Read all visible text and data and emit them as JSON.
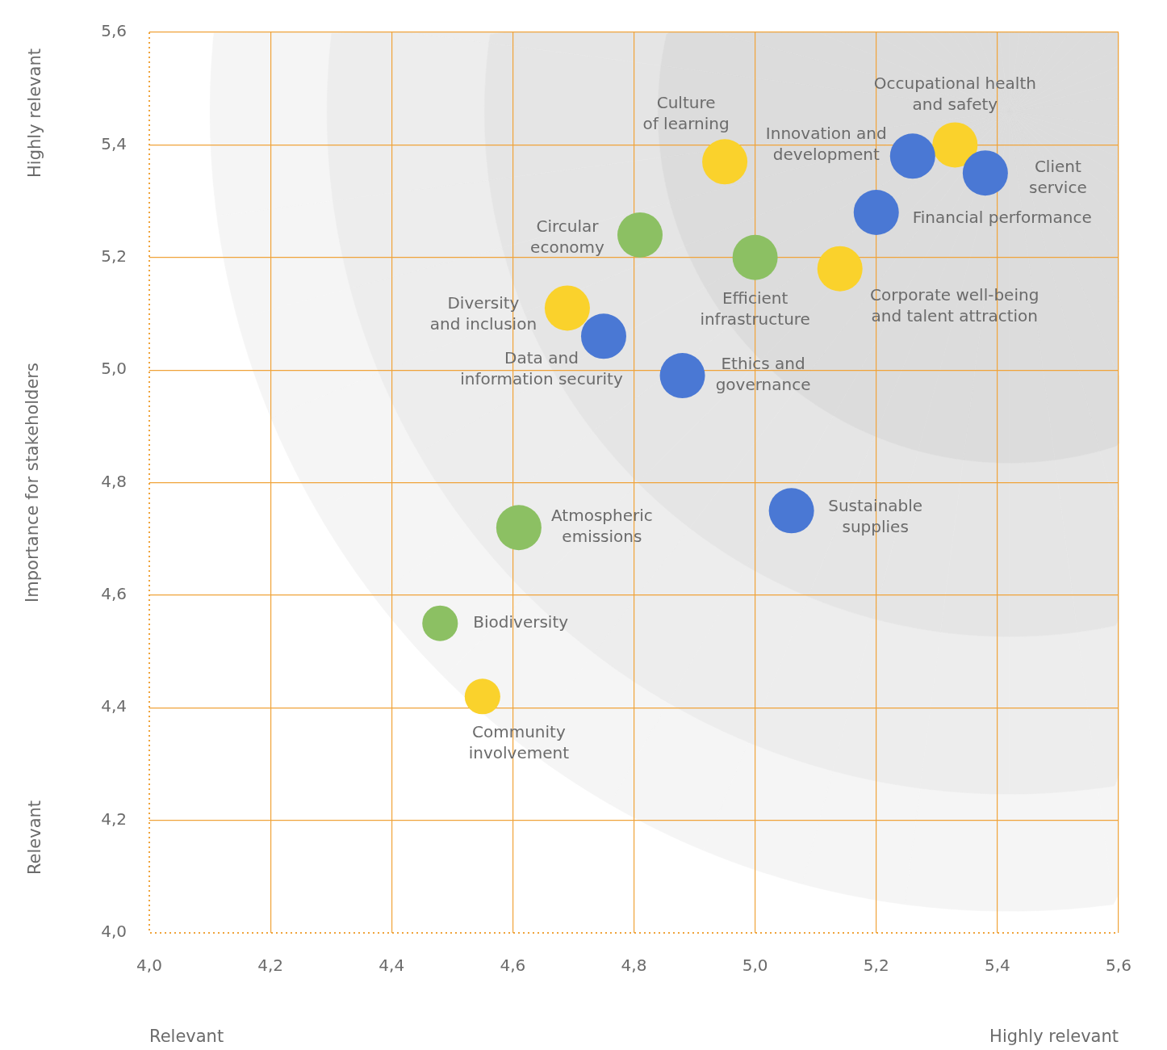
{
  "chart_data": {
    "type": "bubble",
    "ylabel": "Importance for stakeholders",
    "xlim": [
      4,
      5.6
    ],
    "xticks": [
      {
        "value": 4,
        "label": "4,0"
      },
      {
        "value": 4.2,
        "label": "4,2"
      },
      {
        "value": 4.4,
        "label": "4,4"
      },
      {
        "value": 4.6,
        "label": "4,6"
      },
      {
        "value": 4.8,
        "label": "4,8"
      },
      {
        "value": 5,
        "label": "5,0"
      },
      {
        "value": 5.2,
        "label": "5,2"
      },
      {
        "value": 5.4,
        "label": "5,4"
      },
      {
        "value": 5.6,
        "label": "5,6"
      }
    ],
    "ylim": [
      4,
      5.6
    ],
    "yticks": [
      {
        "value": 4,
        "label": "4,0"
      },
      {
        "value": 4.2,
        "label": "4,2"
      },
      {
        "value": 4.4,
        "label": "4,4"
      },
      {
        "value": 4.6,
        "label": "4,6"
      },
      {
        "value": 4.8,
        "label": "4,8"
      },
      {
        "value": 5,
        "label": "5,0"
      },
      {
        "value": 5.2,
        "label": "5,2"
      },
      {
        "value": 5.4,
        "label": "5,4"
      },
      {
        "value": 5.6,
        "label": "5,6"
      }
    ],
    "grid": true,
    "legend": false,
    "series": [
      {
        "color": "#4a78d4",
        "x": [
          5.26,
          5.38,
          5.2,
          4.75,
          4.88,
          5.06
        ],
        "values": [
          5.38,
          5.35,
          5.28,
          5.06,
          4.99,
          4.75
        ],
        "sizes": [
          1,
          1,
          1,
          1,
          1,
          1
        ]
      },
      {
        "color": "#8cc063",
        "x": [
          4.81,
          5.0,
          4.61,
          4.48
        ],
        "values": [
          5.24,
          5.2,
          4.72,
          4.55
        ],
        "sizes": [
          1,
          1,
          1,
          0.62
        ]
      },
      {
        "color": "#fad22c",
        "x": [
          4.95,
          5.33,
          5.14,
          4.69,
          4.55
        ],
        "values": [
          5.37,
          5.4,
          5.18,
          5.11,
          4.42
        ],
        "sizes": [
          1,
          1,
          1,
          1,
          0.62
        ]
      }
    ],
    "annotations": [
      "Highly relevant",
      "Relevant",
      "Relevant",
      "Highly relevant",
      {
        "text": "Culture of learning",
        "x": 4.95,
        "y": 5.37
      },
      {
        "text": "Occupational health and safety",
        "x": 5.33,
        "y": 5.4
      },
      {
        "text": "Innovation and development",
        "x": 5.26,
        "y": 5.38
      },
      {
        "text": "Client service",
        "x": 5.38,
        "y": 5.35
      },
      {
        "text": "Financial performance",
        "x": 5.2,
        "y": 5.28
      },
      {
        "text": "Circular economy",
        "x": 4.81,
        "y": 5.24
      },
      {
        "text": "Efficient infrastructure",
        "x": 5.0,
        "y": 5.2
      },
      {
        "text": "Corporate well-being and talent attraction",
        "x": 5.14,
        "y": 5.18
      },
      {
        "text": "Diversity and inclusion",
        "x": 4.69,
        "y": 5.11
      },
      {
        "text": "Data and information security",
        "x": 4.75,
        "y": 5.06
      },
      {
        "text": "Ethics and governance",
        "x": 4.88,
        "y": 4.99
      },
      {
        "text": "Sustainable supplies",
        "x": 5.06,
        "y": 4.75
      },
      {
        "text": "Atmospheric emissions",
        "x": 4.61,
        "y": 4.72
      },
      {
        "text": "Biodiversity",
        "x": 4.48,
        "y": 4.55
      },
      {
        "text": "Community involvement",
        "x": 4.55,
        "y": 4.42
      }
    ]
  }
}
